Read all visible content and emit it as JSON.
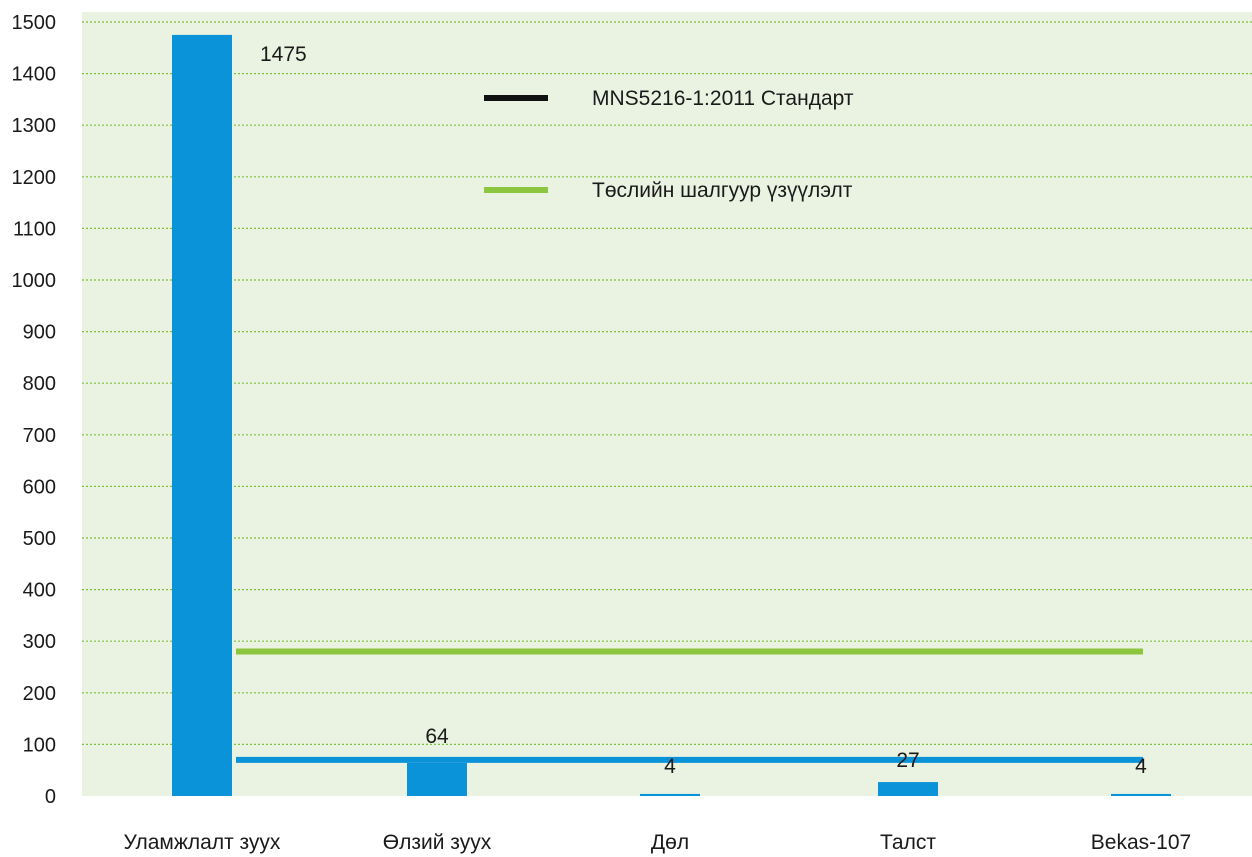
{
  "chart_data": {
    "type": "bar",
    "title": "",
    "xlabel": "",
    "ylabel": "",
    "ylim": [
      0,
      1500
    ],
    "yticks": [
      0,
      100,
      200,
      300,
      400,
      500,
      600,
      700,
      800,
      900,
      1000,
      1100,
      1200,
      1300,
      1400,
      1500
    ],
    "grid": true,
    "categories": [
      "Уламжлалт зуух",
      "Өлзий зуух",
      "Дөл",
      "Талст",
      "Bekas-107"
    ],
    "values": [
      1475,
      64,
      4,
      27,
      4
    ],
    "data_labels": [
      "1475",
      "64",
      "4",
      "27",
      "4"
    ],
    "reference_lines": [
      {
        "name": "MNS5216-1:2011 Стандарт",
        "value": 70,
        "color": "#0a93d8",
        "legend_color": "#111111"
      },
      {
        "name": "Төслийн шалгуур үзүүлэлт",
        "value": 280,
        "color": "#8cc63f",
        "legend_color": "#8cc63f"
      }
    ],
    "legend_position": "top-center",
    "colors": {
      "bar": "#0a93d8",
      "plot_background": "#eaf3e2",
      "gridline": "#7dbf3a"
    }
  }
}
